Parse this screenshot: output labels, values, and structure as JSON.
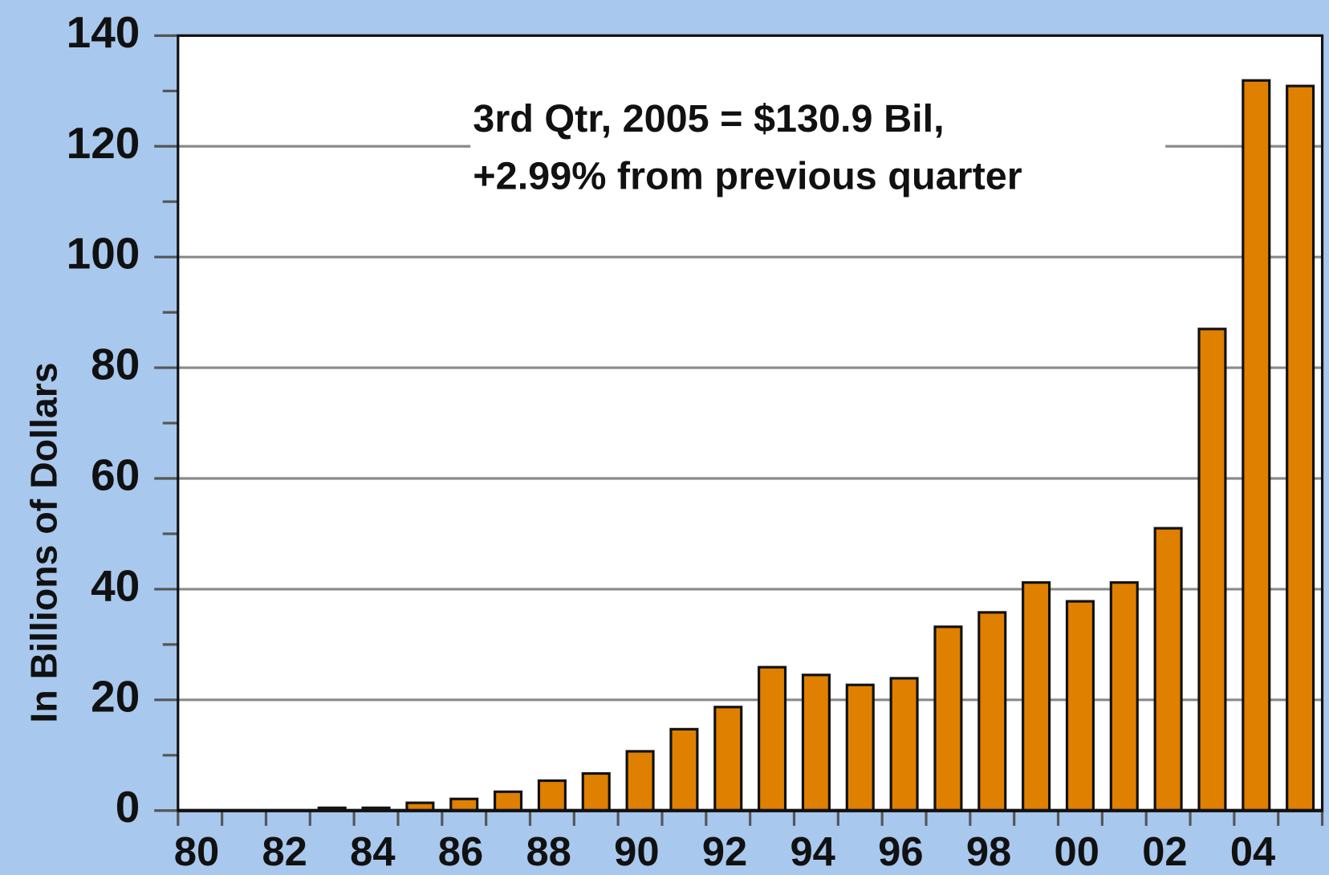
{
  "chart_data": {
    "type": "bar",
    "y_label": "In Billions of Dollars",
    "annotation": [
      "3rd Qtr, 2005 = $130.9 Bil,",
      "+2.99% from previous quarter"
    ],
    "categories": [
      "80",
      null,
      "82",
      null,
      "84",
      null,
      "86",
      null,
      "88",
      null,
      "90",
      null,
      "92",
      null,
      "94",
      null,
      "96",
      null,
      "98",
      null,
      "00",
      null,
      "02",
      null,
      "04",
      null
    ],
    "values": [
      0,
      0,
      0,
      0.5,
      0.5,
      1.4,
      2.1,
      3.4,
      5.4,
      6.7,
      10.7,
      14.7,
      18.7,
      25.9,
      24.5,
      22.7,
      23.9,
      33.2,
      35.8,
      41.2,
      37.8,
      41.2,
      51.0,
      87.0,
      131.9,
      130.9
    ],
    "color": "#e08000",
    "ylim": [
      0,
      140
    ],
    "yticks": [
      0,
      20,
      40,
      60,
      80,
      100,
      120,
      140
    ],
    "grid": true
  }
}
